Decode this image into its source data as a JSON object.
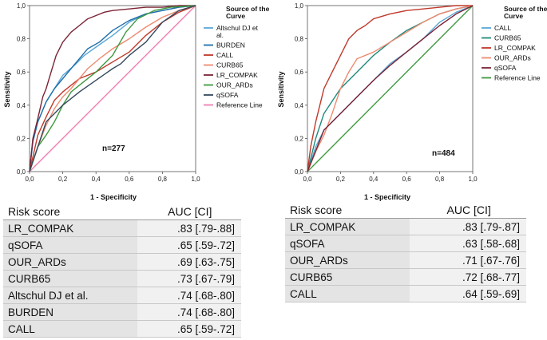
{
  "chart_data": [
    {
      "type": "line",
      "title": "",
      "annotation": "n=277",
      "xlabel": "1 - Specificity",
      "ylabel": "Sensitivity",
      "xlim": [
        0,
        1
      ],
      "ylim": [
        0,
        1
      ],
      "x_ticks": [
        "0,0",
        "0,2",
        "0,4",
        "0,6",
        "0,8",
        "1,0"
      ],
      "y_ticks": [
        "0,0",
        "0,2",
        "0,4",
        "0,6",
        "0,8",
        "1,0"
      ],
      "legend_title": "Source of the Curve",
      "legend_position": "right",
      "series": [
        {
          "name": "Altschul DJ et al.",
          "color": "#5aa7d8",
          "x": [
            0,
            0.02,
            0.05,
            0.1,
            0.15,
            0.2,
            0.27,
            0.33,
            0.4,
            0.5,
            0.6,
            0.7,
            0.8,
            0.9,
            1
          ],
          "y": [
            0,
            0.2,
            0.3,
            0.42,
            0.5,
            0.58,
            0.64,
            0.7,
            0.75,
            0.82,
            0.9,
            0.95,
            0.97,
            0.99,
            1
          ]
        },
        {
          "name": "BURDEN",
          "color": "#1f6fa8",
          "x": [
            0,
            0.02,
            0.05,
            0.1,
            0.15,
            0.2,
            0.25,
            0.3,
            0.35,
            0.42,
            0.5,
            0.6,
            0.7,
            0.8,
            0.9,
            1
          ],
          "y": [
            0,
            0.18,
            0.3,
            0.42,
            0.5,
            0.56,
            0.62,
            0.68,
            0.74,
            0.78,
            0.85,
            0.91,
            0.95,
            0.97,
            0.99,
            1
          ]
        },
        {
          "name": "CALL",
          "color": "#c0392b",
          "x": [
            0,
            0.05,
            0.1,
            0.15,
            0.2,
            0.25,
            0.3,
            0.4,
            0.5,
            0.6,
            0.7,
            0.8,
            0.9,
            1
          ],
          "y": [
            0,
            0.22,
            0.33,
            0.43,
            0.48,
            0.52,
            0.56,
            0.6,
            0.66,
            0.72,
            0.82,
            0.9,
            0.96,
            1
          ]
        },
        {
          "name": "CURB65",
          "color": "#f08a70",
          "x": [
            0,
            0.05,
            0.1,
            0.15,
            0.2,
            0.25,
            0.3,
            0.35,
            0.42,
            0.5,
            0.6,
            0.7,
            0.8,
            0.9,
            1
          ],
          "y": [
            0,
            0.15,
            0.28,
            0.38,
            0.45,
            0.5,
            0.56,
            0.62,
            0.68,
            0.74,
            0.8,
            0.87,
            0.93,
            0.97,
            1
          ]
        },
        {
          "name": "LR_COMPAK",
          "color": "#7b2335",
          "x": [
            0,
            0.02,
            0.05,
            0.08,
            0.1,
            0.13,
            0.16,
            0.2,
            0.25,
            0.3,
            0.35,
            0.4,
            0.45,
            0.5,
            0.6,
            0.7,
            0.8,
            0.9,
            1
          ],
          "y": [
            0,
            0.2,
            0.32,
            0.45,
            0.5,
            0.6,
            0.7,
            0.78,
            0.84,
            0.88,
            0.92,
            0.94,
            0.96,
            0.97,
            0.98,
            0.99,
            0.99,
            1,
            1
          ]
        },
        {
          "name": "OUR_ARDs",
          "color": "#3f9a3f",
          "x": [
            0,
            0.05,
            0.1,
            0.15,
            0.2,
            0.25,
            0.3,
            0.4,
            0.5,
            0.58,
            0.65,
            0.75,
            0.85,
            1
          ],
          "y": [
            0,
            0.15,
            0.22,
            0.3,
            0.4,
            0.48,
            0.52,
            0.6,
            0.7,
            0.84,
            0.92,
            0.97,
            0.99,
            1
          ]
        },
        {
          "name": "qSOFA",
          "color": "#34495e",
          "x": [
            0,
            0.1,
            0.2,
            0.3,
            0.4,
            0.5,
            0.55,
            0.6,
            0.7,
            0.8,
            0.9,
            1
          ],
          "y": [
            0,
            0.3,
            0.4,
            0.48,
            0.55,
            0.62,
            0.65,
            0.7,
            0.78,
            0.9,
            0.97,
            1
          ]
        },
        {
          "name": "Reference Line",
          "color": "#ef7fb2",
          "x": [
            0,
            1
          ],
          "y": [
            0,
            1
          ]
        }
      ]
    },
    {
      "type": "line",
      "title": "",
      "annotation": "n=484",
      "xlabel": "1 - Specificity",
      "ylabel": "Sensitivity",
      "xlim": [
        0,
        1
      ],
      "ylim": [
        0,
        1
      ],
      "x_ticks": [
        "0,0",
        "0,2",
        "0,4",
        "0,6",
        "0,8",
        "1,0"
      ],
      "y_ticks": [
        "0,0",
        "0,2",
        "0,4",
        "0,6",
        "0,8",
        "1,0"
      ],
      "legend_title": "Source of the Curve",
      "legend_position": "right",
      "series": [
        {
          "name": "CALL",
          "color": "#5aa7d8",
          "x": [
            0,
            0.05,
            0.1,
            0.2,
            0.3,
            0.4,
            0.5,
            0.6,
            0.7,
            0.8,
            0.9,
            1
          ],
          "y": [
            0,
            0.15,
            0.25,
            0.35,
            0.45,
            0.55,
            0.65,
            0.72,
            0.8,
            0.9,
            0.96,
            1
          ]
        },
        {
          "name": "CURB65",
          "color": "#1f8a7a",
          "x": [
            0,
            0.05,
            0.1,
            0.2,
            0.3,
            0.4,
            0.5,
            0.6,
            0.7,
            0.8,
            0.9,
            1
          ],
          "y": [
            0,
            0.2,
            0.35,
            0.5,
            0.6,
            0.7,
            0.78,
            0.85,
            0.9,
            0.95,
            0.98,
            1
          ]
        },
        {
          "name": "LR_COMPAK",
          "color": "#c0392b",
          "x": [
            0,
            0.02,
            0.05,
            0.08,
            0.1,
            0.15,
            0.2,
            0.25,
            0.3,
            0.35,
            0.4,
            0.5,
            0.6,
            0.7,
            0.8,
            0.9,
            1
          ],
          "y": [
            0,
            0.15,
            0.3,
            0.42,
            0.5,
            0.6,
            0.7,
            0.8,
            0.85,
            0.88,
            0.92,
            0.95,
            0.97,
            0.98,
            0.99,
            1,
            1
          ]
        },
        {
          "name": "OUR_ARDs",
          "color": "#f08a70",
          "x": [
            0,
            0.05,
            0.1,
            0.15,
            0.2,
            0.25,
            0.3,
            0.4,
            0.5,
            0.6,
            0.7,
            0.8,
            0.9,
            1
          ],
          "y": [
            0,
            0.12,
            0.22,
            0.35,
            0.5,
            0.6,
            0.68,
            0.72,
            0.78,
            0.84,
            0.9,
            0.95,
            0.98,
            1
          ]
        },
        {
          "name": "qSOFA",
          "color": "#7b2335",
          "x": [
            0,
            0.1,
            0.2,
            0.3,
            0.4,
            0.5,
            0.6,
            0.7,
            0.8,
            0.9,
            1
          ],
          "y": [
            0,
            0.25,
            0.35,
            0.45,
            0.55,
            0.64,
            0.72,
            0.8,
            0.88,
            0.95,
            1
          ]
        },
        {
          "name": "Reference Line",
          "color": "#3f9a3f",
          "x": [
            0,
            1
          ],
          "y": [
            0,
            1
          ]
        }
      ]
    }
  ],
  "tables": [
    {
      "header": {
        "score": "Risk score",
        "auc": "AUC [CI]"
      },
      "rows": [
        {
          "score": "LR_COMPAK",
          "auc": ".83 [.79-.88]"
        },
        {
          "score": "qSOFA",
          "auc": ".65 [.59-.72]"
        },
        {
          "score": "OUR_ARDs",
          "auc": ".69 [.63-.75]"
        },
        {
          "score": "CURB65",
          "auc": ".73 [.67-.79]"
        },
        {
          "score": "Altschul DJ et al.",
          "auc": ".74 [.68-.80]"
        },
        {
          "score": "BURDEN",
          "auc": ".74 [.68-.80]"
        },
        {
          "score": "CALL",
          "auc": ".65 [.59-.72]"
        }
      ]
    },
    {
      "header": {
        "score": "Risk score",
        "auc": "AUC [CI]"
      },
      "rows": [
        {
          "score": "LR_COMPAK",
          "auc": ".83 [.79-.87]"
        },
        {
          "score": "qSOFA",
          "auc": ".63 [.58-.68]"
        },
        {
          "score": "OUR_ARDs",
          "auc": ".71 [.67-.76]"
        },
        {
          "score": "CURB65",
          "auc": ".72 [.68-.77]"
        },
        {
          "score": "CALL",
          "auc": ".64 [.59-.69]"
        }
      ]
    }
  ]
}
